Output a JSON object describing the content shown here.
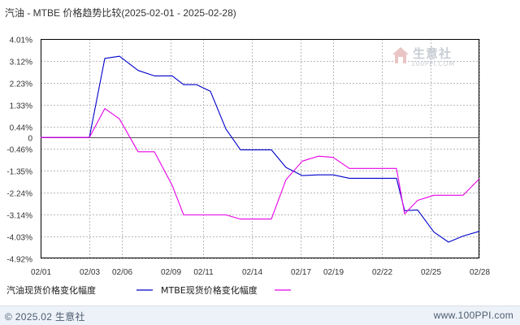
{
  "chart_data": {
    "type": "line",
    "title": "汽油 - MTBE 价格趋势比较(2025-02-01 - 2025-02-28)",
    "xlabel": "",
    "ylabel": "",
    "categories": [
      "02/01",
      "02/02",
      "02/03",
      "02/04",
      "02/05",
      "02/06",
      "02/07",
      "02/08",
      "02/09",
      "02/10",
      "02/11",
      "02/12",
      "02/13",
      "02/14",
      "02/15",
      "02/16",
      "02/17",
      "02/18",
      "02/19",
      "02/20",
      "02/21",
      "02/22",
      "02/23",
      "02/24",
      "02/25",
      "02/26",
      "02/27",
      "02/28"
    ],
    "x_tick_labels": [
      "02/01",
      "02/03",
      "02/06",
      "02/09",
      "02/11",
      "02/14",
      "02/17",
      "02/19",
      "02/22",
      "02/25",
      "02/28"
    ],
    "x_tick_index": [
      0,
      3,
      5,
      8,
      10,
      13,
      16,
      18,
      21,
      24,
      27
    ],
    "y_ticks": [
      4.01,
      3.12,
      2.23,
      1.33,
      0.44,
      0,
      -0.46,
      -1.35,
      -2.24,
      -3.14,
      -4.03,
      -4.92
    ],
    "y_tick_labels": [
      "4.01%",
      "3.12%",
      "2.23%",
      "1.33%",
      "0.44%",
      "0",
      "-0.46%",
      "-1.35%",
      "-2.24%",
      "-3.14%",
      "-4.03%",
      "-4.92%"
    ],
    "ylim": [
      -4.92,
      4.01
    ],
    "grid": "dashed",
    "legend_position": "bottom-left",
    "series": [
      {
        "name": "汽油现货价格变化幅度",
        "color": "#0000cc",
        "x": [
          0,
          3,
          3.95,
          4.85,
          6,
          7,
          8.1,
          8.8,
          9.6,
          10.45,
          11.4,
          12.3,
          13.1,
          14.2,
          15.1,
          16.1,
          17.1,
          18,
          19,
          20,
          20.9,
          21.9,
          22.4,
          23.2,
          24.2,
          25.1,
          26,
          27
        ],
        "values": [
          0,
          0,
          3.22,
          3.31,
          2.73,
          2.51,
          2.51,
          2.15,
          2.15,
          1.88,
          0.35,
          -0.5,
          -0.5,
          -0.5,
          -1.22,
          -1.55,
          -1.52,
          -1.52,
          -1.66,
          -1.66,
          -1.66,
          -1.66,
          -2.98,
          -2.95,
          -3.85,
          -4.26,
          -4.01,
          -3.82
        ]
      },
      {
        "name": "MTBE现货价格变化幅度",
        "color": "#e600e6",
        "x": [
          0,
          3,
          3.95,
          4.85,
          6,
          7,
          8.1,
          8.8,
          9.6,
          10.45,
          11.4,
          12.3,
          13.1,
          14.2,
          15.1,
          16.1,
          17.1,
          18,
          19,
          20,
          20.9,
          21.9,
          22.4,
          23.2,
          24.2,
          25.1,
          26,
          27
        ],
        "values": [
          0,
          0,
          1.18,
          0.76,
          -0.58,
          -0.58,
          -1.95,
          -3.15,
          -3.15,
          -3.15,
          -3.15,
          -3.32,
          -3.32,
          -3.32,
          -1.72,
          -0.96,
          -0.76,
          -0.81,
          -1.26,
          -1.26,
          -1.26,
          -1.26,
          -3.11,
          -2.56,
          -2.35,
          -2.35,
          -2.35,
          -1.68
        ]
      }
    ]
  },
  "watermark": {
    "cn": "生意社",
    "en": "100PPI.COM"
  },
  "footer": {
    "left": "© 2025.02 生意社",
    "right": "www.100PPI.com"
  },
  "colors": {
    "axis": "#000000",
    "grid": "#b8b8b8",
    "footer_bg": "#edf2f8",
    "text": "#333333"
  }
}
